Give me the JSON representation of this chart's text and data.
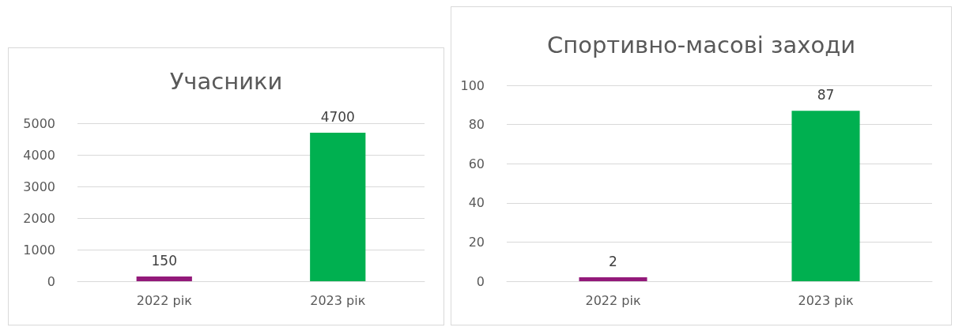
{
  "chart_data": [
    {
      "type": "bar",
      "title": "Учасники",
      "categories": [
        "2022 рік",
        "2023 рік"
      ],
      "values": [
        150,
        4700
      ],
      "colors": [
        "#93197a",
        "#00b050"
      ],
      "ylim": [
        0,
        5000
      ],
      "yticks": [
        0,
        1000,
        2000,
        3000,
        4000,
        5000
      ],
      "grid": "y",
      "data_labels": true
    },
    {
      "type": "bar",
      "title": "Спортивно-масові заходи",
      "categories": [
        "2022 рік",
        "2023 рік"
      ],
      "values": [
        2,
        87
      ],
      "colors": [
        "#93197a",
        "#00b050"
      ],
      "ylim": [
        0,
        100
      ],
      "yticks": [
        0,
        20,
        40,
        60,
        80,
        100
      ],
      "grid": "y",
      "data_labels": true
    }
  ]
}
